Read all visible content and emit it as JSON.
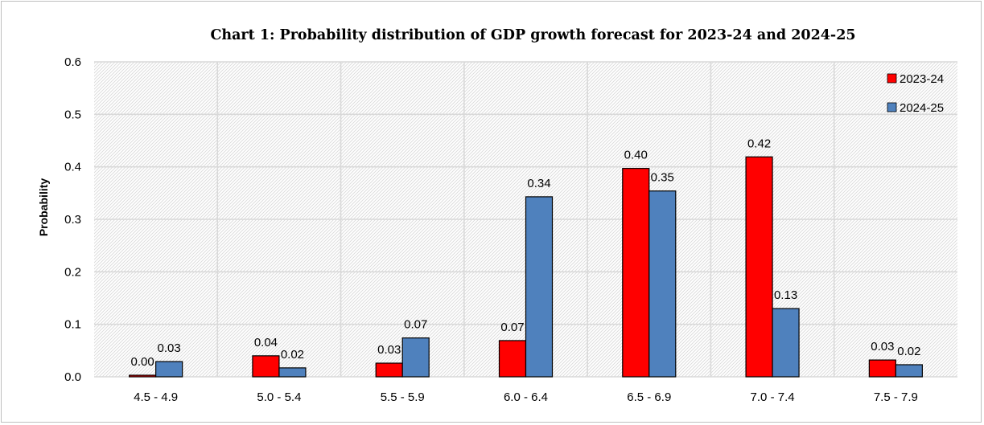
{
  "chart_data": {
    "type": "bar",
    "title": "Chart 1: Probability distribution of  GDP growth forecast for 2023-24 and 2024-25",
    "xlabel": "",
    "ylabel": "Probability",
    "ylim": [
      0,
      0.6
    ],
    "yticks": [
      "0.0",
      "0.1",
      "0.2",
      "0.3",
      "0.4",
      "0.5",
      "0.6"
    ],
    "categories": [
      "4.5 - 4.9",
      "5.0 - 5.4",
      "5.5 - 5.9",
      "6.0 - 6.4",
      "6.5 - 6.9",
      "7.0 - 7.4",
      "7.5 - 7.9"
    ],
    "series": [
      {
        "name": "2023-24",
        "color": "#ff0000",
        "values": [
          0.003,
          0.04,
          0.026,
          0.069,
          0.397,
          0.419,
          0.032
        ],
        "labels": [
          "0.00",
          "0.04",
          "0.03",
          "0.07",
          "0.40",
          "0.42",
          "0.03"
        ]
      },
      {
        "name": "2024-25",
        "color": "#4f81bd",
        "values": [
          0.029,
          0.017,
          0.074,
          0.343,
          0.354,
          0.13,
          0.023
        ],
        "labels": [
          "0.03",
          "0.02",
          "0.07",
          "0.34",
          "0.35",
          "0.13",
          "0.02"
        ]
      }
    ],
    "grid": true,
    "legend": "top-right"
  }
}
